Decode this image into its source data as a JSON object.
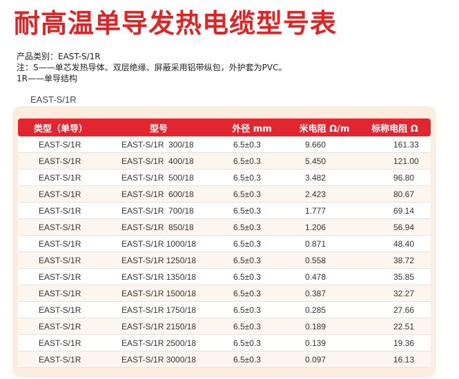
{
  "title": "耐高温单导发热电缆型号表",
  "info": {
    "category": "产品类别：EAST-S/1R",
    "note": "注：S——单芯发热导体、双层绝缘、屏蔽采用铝带纵包，外护套为PVC。",
    "structure": "1R——单导结构"
  },
  "section_label": "EAST-S/1R",
  "table": {
    "headers": [
      "类型（单导）",
      "型号",
      "外径 mm",
      "米电阻 Ω/m",
      "标称电阻 Ω"
    ],
    "rows": [
      [
        "EAST-S/1R",
        "EAST-S/1R  300/18",
        "6.5±0.3",
        "9.660",
        "161.33"
      ],
      [
        "EAST-S/1R",
        "EAST-S/1R  400/18",
        "6.5±0.3",
        "5.450",
        "121.00"
      ],
      [
        "EAST-S/1R",
        "EAST-S/1R  500/18",
        "6.5±0.3",
        "3.482",
        "96.80"
      ],
      [
        "EAST-S/1R",
        "EAST-S/1R  600/18",
        "6.5±0.3",
        "2.423",
        "80.67"
      ],
      [
        "EAST-S/1R",
        "EAST-S/1R  700/18",
        "6.5±0.3",
        "1.777",
        "69.14"
      ],
      [
        "EAST-S/1R",
        "EAST-S/1R  850/18",
        "6.5±0.3",
        "1.206",
        "56.94"
      ],
      [
        "EAST-S/1R",
        "EAST-S/1R 1000/18",
        "6.5±0.3",
        "0.871",
        "48.40"
      ],
      [
        "EAST-S/1R",
        "EAST-S/1R 1250/18",
        "6.5±0.3",
        "0.558",
        "38.72"
      ],
      [
        "EAST-S/1R",
        "EAST-S/1R 1350/18",
        "6.5±0.3",
        "0.478",
        "35.85"
      ],
      [
        "EAST-S/1R",
        "EAST-S/1R 1500/18",
        "6.5±0.3",
        "0.387",
        "32.27"
      ],
      [
        "EAST-S/1R",
        "EAST-S/1R 1750/18",
        "6.5±0.3",
        "0.285",
        "27.66"
      ],
      [
        "EAST-S/1R",
        "EAST-S/1R 2150/18",
        "6.5±0.3",
        "0.189",
        "22.51"
      ],
      [
        "EAST-S/1R",
        "EAST-S/1R 2500/18",
        "6.5±0.3",
        "0.139",
        "19.36"
      ],
      [
        "EAST-S/1R",
        "EAST-S/1R 3000/18",
        "6.5±0.3",
        "0.097",
        "16.13"
      ]
    ]
  },
  "colors": {
    "title_red": "#e02424",
    "header_red": "#e1262f",
    "panel_beige": "#fbeee0"
  }
}
